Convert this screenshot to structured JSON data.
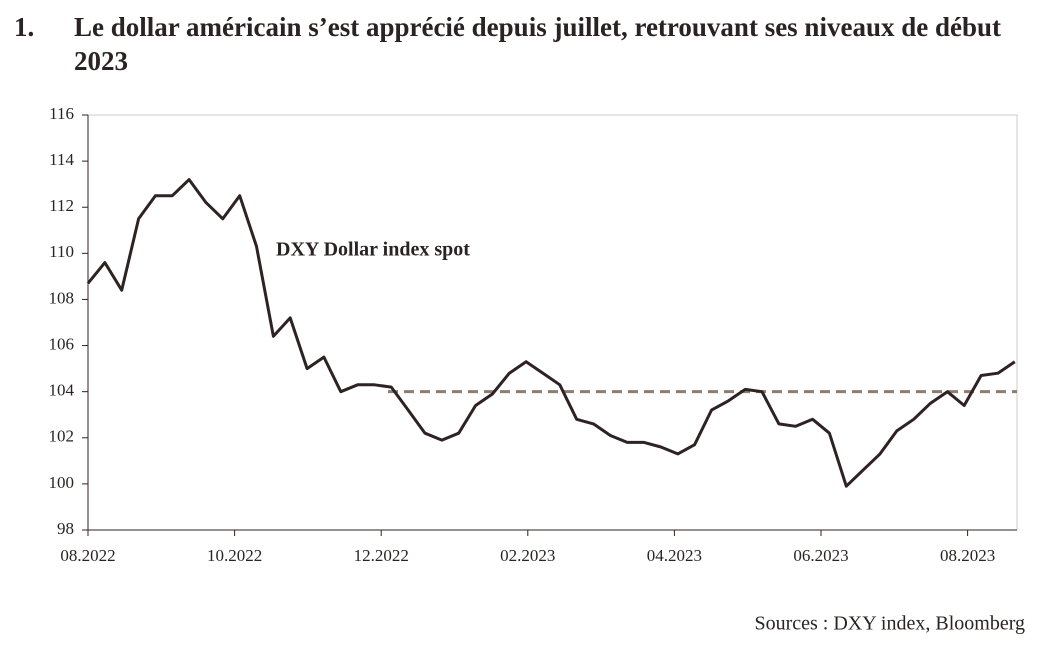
{
  "chart_data": {
    "type": "line",
    "number": "1.",
    "title": "Le dollar américain s’est apprécié depuis juillet, retrouvant ses niveaux de début 2023",
    "annotation": "DXY Dollar index spot",
    "source": "Sources : DXY index, Bloomberg",
    "xticks": [
      "08.2022",
      "10.2022",
      "12.2022",
      "02.2023",
      "04.2023",
      "06.2023",
      "08.2023"
    ],
    "series": [
      {
        "name": "DXY Dollar index spot",
        "color": "#2e2222",
        "values": [
          108.7,
          109.6,
          108.4,
          111.5,
          112.5,
          112.5,
          113.2,
          112.2,
          111.5,
          112.5,
          110.3,
          106.4,
          107.2,
          105,
          105.5,
          104,
          104.3,
          104.3,
          104.2,
          103.2,
          102.2,
          101.9,
          102.2,
          103.4,
          103.9,
          104.8,
          105.3,
          104.8,
          104.3,
          102.8,
          102.6,
          102.1,
          101.8,
          101.8,
          101.6,
          101.3,
          101.7,
          103.2,
          103.6,
          104.1,
          104,
          102.6,
          102.5,
          102.8,
          102.2,
          99.9,
          100.6,
          101.3,
          102.3,
          102.8,
          103.5,
          104,
          103.4,
          104.7,
          104.8,
          105.3
        ]
      }
    ],
    "reference_line": {
      "value": 104,
      "color": "#8c7e72"
    },
    "ylim": [
      98,
      116
    ],
    "yticks": [
      98,
      100,
      102,
      104,
      106,
      108,
      110,
      112,
      114,
      116
    ]
  }
}
